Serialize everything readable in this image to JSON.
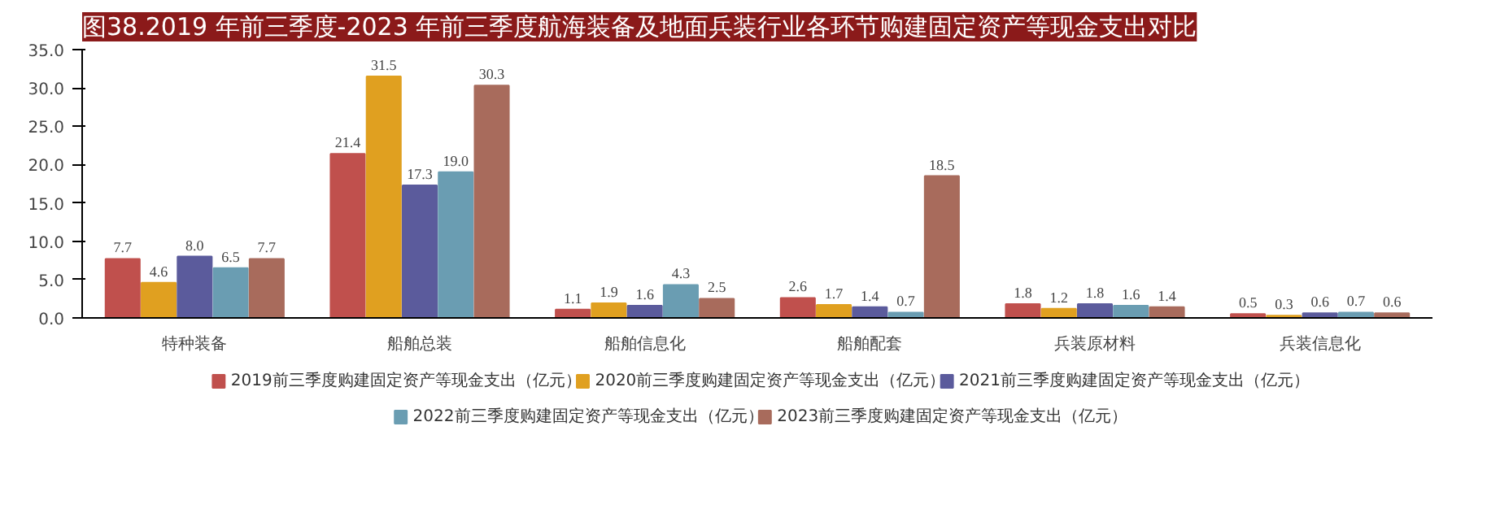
{
  "chart_data": {
    "type": "bar",
    "title": "图38.2019 年前三季度-2023 年前三季度航海装备及地面兵装行业各环节购建固定资产等现金支出对比",
    "categories": [
      "特种装备",
      "船舶总装",
      "船舶信息化",
      "船舶配套",
      "兵装原材料",
      "兵装信息化"
    ],
    "series": [
      {
        "name": "2019前三季度购建固定资产等现金支出（亿元）",
        "color": "#c0504d",
        "values": [
          7.7,
          21.4,
          1.1,
          2.6,
          1.8,
          0.5
        ],
        "value_labels": [
          "7.7",
          "21.4",
          "1.1",
          "2.6",
          "1.8",
          "0.5"
        ]
      },
      {
        "name": "2020前三季度购建固定资产等现金支出（亿元）",
        "color": "#e0a020",
        "values": [
          4.6,
          31.5,
          1.9,
          1.7,
          1.2,
          0.3
        ],
        "value_labels": [
          "4.6",
          "31.5",
          "1.9",
          "1.7",
          "1.2",
          "0.3"
        ]
      },
      {
        "name": "2021前三季度购建固定资产等现金支出（亿元）",
        "color": "#5b5b9c",
        "values": [
          8.0,
          17.3,
          1.6,
          1.4,
          1.8,
          0.6
        ],
        "value_labels": [
          "8.0",
          "17.3",
          "1.6",
          "1.4",
          "1.8",
          "0.6"
        ]
      },
      {
        "name": "2022前三季度购建固定资产等现金支出（亿元）",
        "color": "#6a9db2",
        "values": [
          6.5,
          19.0,
          4.3,
          0.7,
          1.6,
          0.7
        ],
        "value_labels": [
          "6.5",
          "19.0",
          "4.3",
          "0.7",
          "1.6",
          "0.7"
        ]
      },
      {
        "name": "2023前三季度购建固定资产等现金支出（亿元）",
        "color": "#a86b5c",
        "values": [
          7.7,
          30.3,
          2.5,
          18.5,
          1.4,
          0.6
        ],
        "value_labels": [
          "7.7",
          "30.3",
          "2.5",
          "18.5",
          "1.4",
          "0.6"
        ]
      }
    ],
    "ylim": [
      0,
      35
    ],
    "yticks": [
      {
        "value": 0,
        "label": "0.0"
      },
      {
        "value": 5,
        "label": "5.0"
      },
      {
        "value": 10,
        "label": "10.0"
      },
      {
        "value": 15,
        "label": "15.0"
      },
      {
        "value": 20,
        "label": "20.0"
      },
      {
        "value": 25,
        "label": "25.0"
      },
      {
        "value": 30,
        "label": "30.0"
      },
      {
        "value": 35,
        "label": "35.0"
      }
    ],
    "legend": "bottom",
    "grid": false
  }
}
